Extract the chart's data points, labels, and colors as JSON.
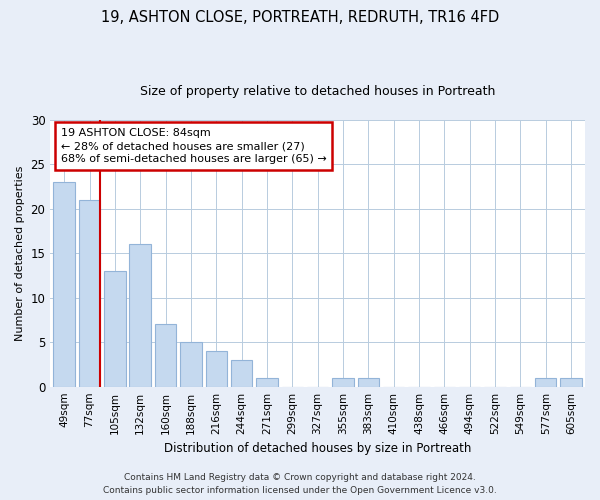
{
  "title": "19, ASHTON CLOSE, PORTREATH, REDRUTH, TR16 4FD",
  "subtitle": "Size of property relative to detached houses in Portreath",
  "xlabel": "Distribution of detached houses by size in Portreath",
  "ylabel": "Number of detached properties",
  "categories": [
    "49sqm",
    "77sqm",
    "105sqm",
    "132sqm",
    "160sqm",
    "188sqm",
    "216sqm",
    "244sqm",
    "271sqm",
    "299sqm",
    "327sqm",
    "355sqm",
    "383sqm",
    "410sqm",
    "438sqm",
    "466sqm",
    "494sqm",
    "522sqm",
    "549sqm",
    "577sqm",
    "605sqm"
  ],
  "values": [
    23,
    21,
    13,
    16,
    7,
    5,
    4,
    3,
    1,
    0,
    0,
    1,
    1,
    0,
    0,
    0,
    0,
    0,
    0,
    1,
    1
  ],
  "bar_color": "#c5d9ef",
  "bar_edge_color": "#93b4d8",
  "annotation_line1": "19 ASHTON CLOSE: 84sqm",
  "annotation_line2": "← 28% of detached houses are smaller (27)",
  "annotation_line3": "68% of semi-detached houses are larger (65) →",
  "annotation_box_color": "white",
  "annotation_box_edge": "#cc0000",
  "ylim": [
    0,
    30
  ],
  "yticks": [
    0,
    5,
    10,
    15,
    20,
    25,
    30
  ],
  "footer_line1": "Contains HM Land Registry data © Crown copyright and database right 2024.",
  "footer_line2": "Contains public sector information licensed under the Open Government Licence v3.0.",
  "bg_color": "#e8eef8",
  "plot_bg_color": "white",
  "grid_color": "#b8ccdf"
}
